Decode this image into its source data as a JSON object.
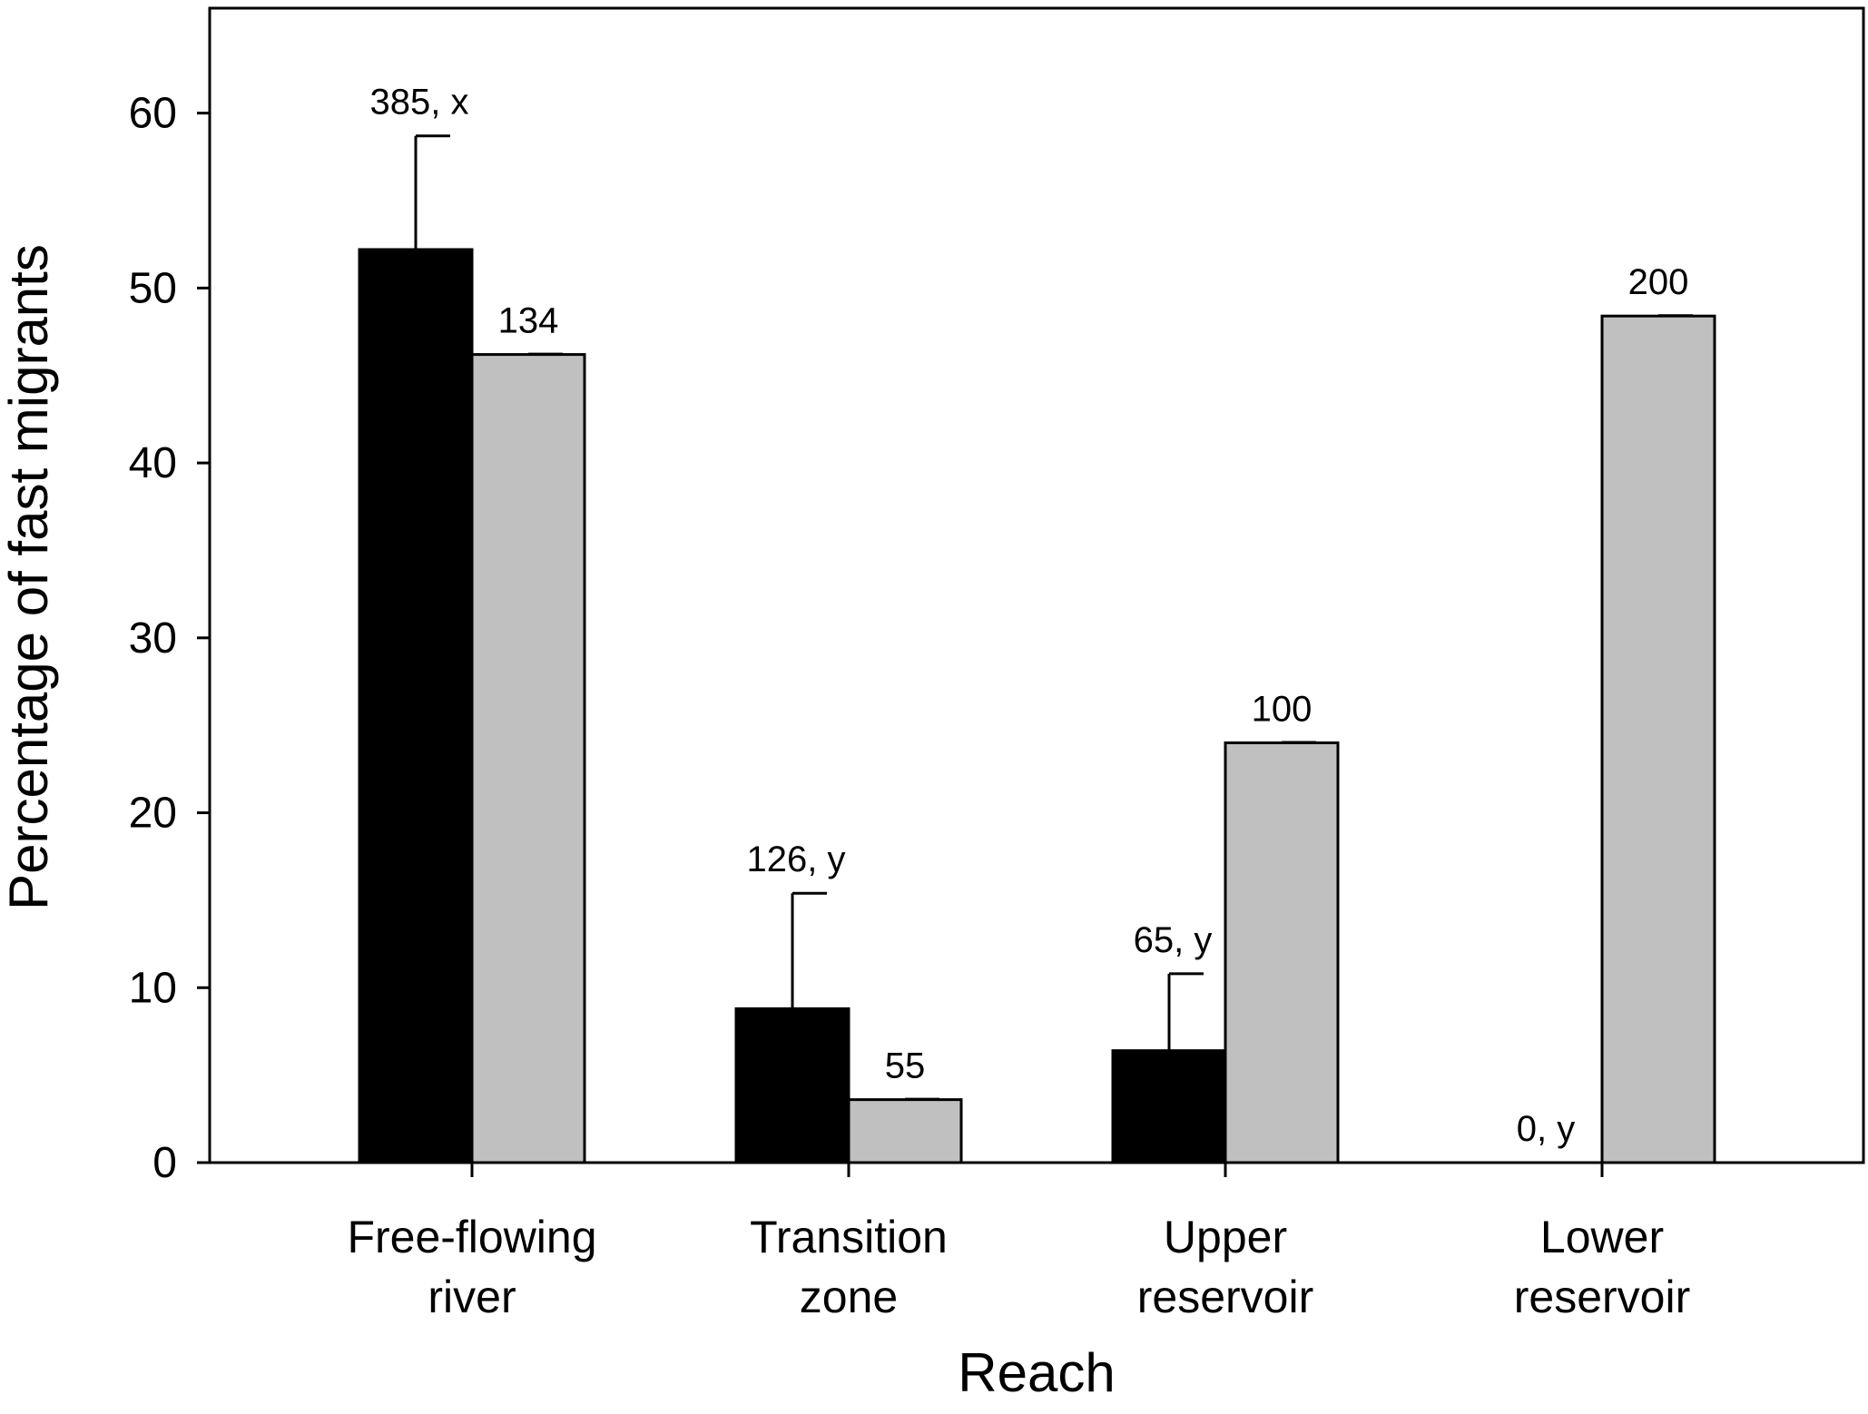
{
  "chart_data": {
    "type": "bar",
    "title": "",
    "xlabel": "Reach",
    "ylabel": "Percentage of fast migrants",
    "ylim": [
      0,
      66
    ],
    "yticks": [
      0,
      10,
      20,
      30,
      40,
      50,
      60
    ],
    "grid": false,
    "legend": "none",
    "categories": [
      [
        "Free-flowing",
        "river"
      ],
      [
        "Transition",
        "zone"
      ],
      [
        "Upper",
        "reservoir"
      ],
      [
        "Lower",
        "reservoir"
      ]
    ],
    "series": [
      {
        "color": "#000000",
        "values": [
          52.2,
          8.8,
          6.4,
          0
        ],
        "error_upper": [
          58.7,
          15.4,
          10.8,
          null
        ],
        "labels": [
          "385, x",
          "126, y",
          "65, y",
          "0, y"
        ]
      },
      {
        "color": "#c0c0c0",
        "values": [
          46.2,
          3.6,
          24.0,
          48.4
        ],
        "error_upper": [
          null,
          null,
          null,
          null
        ],
        "labels": [
          "134",
          "55",
          "100",
          "200"
        ]
      }
    ]
  }
}
